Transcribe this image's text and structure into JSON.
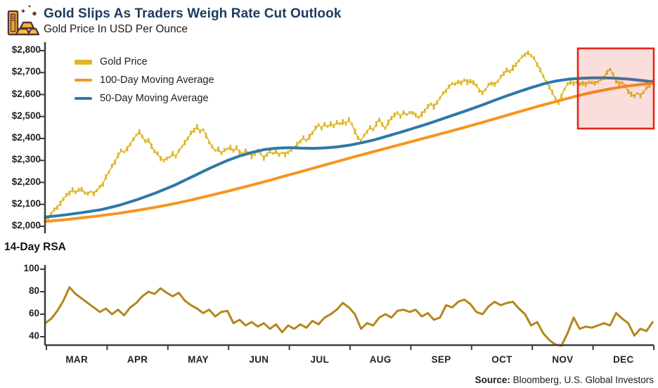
{
  "header": {
    "title": "Gold Slips As Traders Weigh Rate Cut Outlook",
    "subtitle": "Gold Price In USD Per Ounce"
  },
  "rsi_label": "14-Day RSA",
  "source": {
    "label": "Source:",
    "text": "Bloomberg, U.S. Global Investors"
  },
  "icon_name": "gold-bars-icon",
  "colors": {
    "title": "#1C3C5E",
    "text": "#1F1F1F",
    "axis": "#3D3D3D",
    "gold": "#DEB829",
    "rsi_gold": "#B6861C",
    "orange": "#F79420",
    "blue": "#2E79A6",
    "highlight_border": "#E3261D",
    "highlight_fill": "rgba(227,62,45,0.17)"
  },
  "legend": [
    {
      "label": "Gold Price",
      "color": "#DEB829",
      "swatch": "thick"
    },
    {
      "label": "100-Day Moving Average",
      "color": "#F79420",
      "swatch": "thin"
    },
    {
      "label": "50-Day Moving Average",
      "color": "#2E79A6",
      "swatch": "thin"
    }
  ],
  "chart_data": [
    {
      "type": "line",
      "title": "Gold Price In USD Per Ounce",
      "ylabel": "USD per ounce",
      "ylim": [
        2000,
        2800
      ],
      "grid": false,
      "legend_position": "top-left",
      "y_ticks": {
        "values": [
          2800,
          2700,
          2600,
          2500,
          2400,
          2300,
          2200,
          2100,
          2000
        ],
        "labels": [
          "$2,800",
          "$2,700",
          "$2,600",
          "$2,500",
          "$2,400",
          "$2,300",
          "$2,200",
          "$2,100",
          "$2,000"
        ]
      },
      "x_categories": [
        "MAR",
        "APR",
        "MAY",
        "JUN",
        "JUL",
        "AUG",
        "SEP",
        "OCT",
        "NOV",
        "DEC"
      ],
      "highlight_box": {
        "from_month": 8.75,
        "to_month": 10.0,
        "price_bottom": 2445,
        "price_top": 2810
      },
      "series": [
        {
          "name": "Gold Price",
          "style": "candle",
          "color": "#DEB829",
          "start_month": -0.02,
          "step": 0.05,
          "values": [
            2032,
            2040,
            2060,
            2075,
            2090,
            2105,
            2125,
            2140,
            2155,
            2165,
            2155,
            2162,
            2170,
            2155,
            2148,
            2158,
            2150,
            2165,
            2178,
            2195,
            2225,
            2248,
            2272,
            2295,
            2322,
            2345,
            2338,
            2355,
            2375,
            2395,
            2415,
            2430,
            2410,
            2385,
            2395,
            2365,
            2342,
            2328,
            2312,
            2302,
            2308,
            2315,
            2332,
            2320,
            2342,
            2362,
            2382,
            2402,
            2422,
            2440,
            2452,
            2432,
            2442,
            2415,
            2385,
            2362,
            2345,
            2352,
            2335,
            2345,
            2352,
            2358,
            2345,
            2355,
            2340,
            2330,
            2345,
            2335,
            2320,
            2332,
            2342,
            2330,
            2312,
            2328,
            2340,
            2330,
            2342,
            2326,
            2336,
            2330,
            2340,
            2348,
            2360,
            2374,
            2388,
            2402,
            2390,
            2408,
            2426,
            2445,
            2460,
            2450,
            2465,
            2455,
            2468,
            2460,
            2472,
            2466,
            2476,
            2470,
            2484,
            2464,
            2432,
            2404,
            2392,
            2412,
            2434,
            2450,
            2440,
            2468,
            2488,
            2462,
            2446,
            2474,
            2494,
            2505,
            2515,
            2504,
            2518,
            2510,
            2515,
            2520,
            2506,
            2496,
            2512,
            2528,
            2544,
            2556,
            2545,
            2565,
            2586,
            2604,
            2620,
            2636,
            2650,
            2645,
            2660,
            2652,
            2666,
            2658,
            2662,
            2652,
            2640,
            2622,
            2608,
            2624,
            2644,
            2654,
            2646,
            2660,
            2678,
            2698,
            2710,
            2704,
            2722,
            2738,
            2756,
            2770,
            2786,
            2790,
            2778,
            2762,
            2740,
            2712,
            2684,
            2652,
            2636,
            2608,
            2582,
            2568,
            2594,
            2626,
            2646,
            2658,
            2650,
            2656,
            2644,
            2654,
            2646,
            2656,
            2650,
            2654,
            2660,
            2668,
            2682,
            2702,
            2716,
            2690,
            2664,
            2650,
            2654,
            2636,
            2616,
            2600,
            2592,
            2606,
            2596,
            2612,
            2628,
            2644,
            2658
          ]
        },
        {
          "name": "50-Day Moving Average",
          "style": "line",
          "color": "#2E79A6",
          "points": [
            [
              -0.02,
              2042
            ],
            [
              0.3,
              2052
            ],
            [
              0.6,
              2063
            ],
            [
              0.9,
              2076
            ],
            [
              1.2,
              2096
            ],
            [
              1.5,
              2122
            ],
            [
              1.8,
              2152
            ],
            [
              2.1,
              2186
            ],
            [
              2.4,
              2226
            ],
            [
              2.7,
              2266
            ],
            [
              3.0,
              2302
            ],
            [
              3.2,
              2322
            ],
            [
              3.4,
              2338
            ],
            [
              3.6,
              2350
            ],
            [
              3.8,
              2356
            ],
            [
              4.0,
              2358
            ],
            [
              4.2,
              2356
            ],
            [
              4.4,
              2355
            ],
            [
              4.6,
              2357
            ],
            [
              4.8,
              2362
            ],
            [
              5.0,
              2370
            ],
            [
              5.2,
              2381
            ],
            [
              5.4,
              2394
            ],
            [
              5.6,
              2410
            ],
            [
              5.8,
              2426
            ],
            [
              6.0,
              2443
            ],
            [
              6.2,
              2460
            ],
            [
              6.4,
              2478
            ],
            [
              6.6,
              2497
            ],
            [
              6.8,
              2516
            ],
            [
              7.0,
              2535
            ],
            [
              7.2,
              2555
            ],
            [
              7.4,
              2576
            ],
            [
              7.6,
              2596
            ],
            [
              7.8,
              2615
            ],
            [
              8.0,
              2633
            ],
            [
              8.2,
              2650
            ],
            [
              8.4,
              2662
            ],
            [
              8.6,
              2670
            ],
            [
              8.8,
              2674
            ],
            [
              9.0,
              2676
            ],
            [
              9.2,
              2676
            ],
            [
              9.4,
              2674
            ],
            [
              9.6,
              2670
            ],
            [
              9.8,
              2664
            ],
            [
              9.98,
              2658
            ]
          ]
        },
        {
          "name": "100-Day Moving Average",
          "style": "line",
          "color": "#F79420",
          "points": [
            [
              -0.02,
              2022
            ],
            [
              0.3,
              2030
            ],
            [
              0.6,
              2039
            ],
            [
              0.9,
              2049
            ],
            [
              1.2,
              2060
            ],
            [
              1.5,
              2073
            ],
            [
              1.8,
              2087
            ],
            [
              2.1,
              2103
            ],
            [
              2.4,
              2121
            ],
            [
              2.7,
              2141
            ],
            [
              3.0,
              2161
            ],
            [
              3.3,
              2182
            ],
            [
              3.6,
              2204
            ],
            [
              3.9,
              2227
            ],
            [
              4.2,
              2250
            ],
            [
              4.5,
              2273
            ],
            [
              4.8,
              2296
            ],
            [
              5.1,
              2319
            ],
            [
              5.4,
              2341
            ],
            [
              5.7,
              2363
            ],
            [
              6.0,
              2385
            ],
            [
              6.3,
              2407
            ],
            [
              6.6,
              2429
            ],
            [
              6.9,
              2452
            ],
            [
              7.2,
              2475
            ],
            [
              7.5,
              2499
            ],
            [
              7.8,
              2523
            ],
            [
              8.1,
              2547
            ],
            [
              8.4,
              2569
            ],
            [
              8.7,
              2591
            ],
            [
              9.0,
              2611
            ],
            [
              9.3,
              2627
            ],
            [
              9.6,
              2640
            ],
            [
              9.8,
              2646
            ],
            [
              9.98,
              2651
            ]
          ]
        }
      ]
    },
    {
      "type": "line",
      "title": "14-Day RSA",
      "ylim": [
        40,
        100
      ],
      "grid": false,
      "y_ticks": {
        "values": [
          100,
          80,
          60,
          40
        ],
        "labels": [
          "100",
          "80",
          "60",
          "40"
        ]
      },
      "x_categories": [
        "MAR",
        "APR",
        "MAY",
        "JUN",
        "JUL",
        "AUG",
        "SEP",
        "OCT",
        "NOV",
        "DEC"
      ],
      "series": [
        {
          "name": "14-Day RSA",
          "style": "line",
          "color": "#B6861C",
          "start_month": -0.02,
          "step": 0.1,
          "values": [
            52,
            56,
            63,
            72,
            84,
            78,
            74,
            70,
            66,
            62,
            65,
            60,
            64,
            59,
            66,
            70,
            76,
            80,
            78,
            83,
            79,
            76,
            79,
            72,
            68,
            65,
            61,
            64,
            58,
            62,
            63,
            52,
            55,
            50,
            53,
            49,
            52,
            47,
            51,
            44,
            50,
            47,
            51,
            48,
            54,
            51,
            57,
            60,
            64,
            70,
            66,
            60,
            47,
            52,
            50,
            57,
            60,
            57,
            63,
            64,
            62,
            64,
            58,
            61,
            55,
            57,
            68,
            66,
            71,
            73,
            69,
            62,
            60,
            67,
            71,
            68,
            70,
            71,
            65,
            60,
            50,
            53,
            43,
            37,
            33,
            32,
            43,
            57,
            47,
            49,
            48,
            50,
            52,
            50,
            61,
            56,
            52,
            41,
            47,
            45,
            53
          ]
        }
      ]
    }
  ]
}
